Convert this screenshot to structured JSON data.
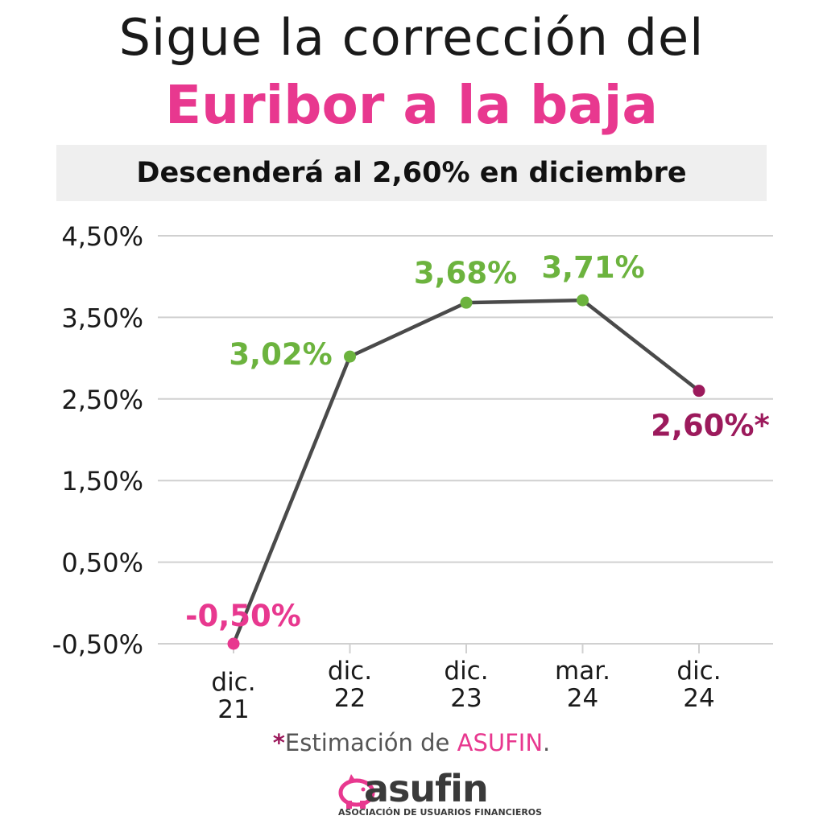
{
  "title_line1": "Sigue la corrección del",
  "title_line2": "Euribor a la baja",
  "subtitle": "Descenderá al 2,60% en diciembre",
  "footnote": {
    "star": "*",
    "text": "Estimación de ",
    "brand": "ASUFIN",
    "end": "."
  },
  "logo": {
    "word": "asufin",
    "tagline": "ASOCIACIÓN DE USUARIOS FINANCIEROS",
    "icon": "piggy-bank-icon"
  },
  "colors": {
    "pink": "#e8388f",
    "green": "#6cb33e",
    "maroon": "#9c1a5c",
    "line": "#4a4a4a",
    "grid": "#d0d0d0"
  },
  "chart_data": {
    "type": "line",
    "categories": [
      [
        "dic.",
        "21"
      ],
      [
        "dic.",
        "22"
      ],
      [
        "dic.",
        "23"
      ],
      [
        "mar.",
        "24"
      ],
      [
        "dic.",
        "24"
      ]
    ],
    "values": [
      -0.5,
      3.02,
      3.68,
      3.71,
      2.6
    ],
    "data_labels": [
      "-0,50%",
      "3,02%",
      "3,68%",
      "3,71%",
      "2,60%*"
    ],
    "point_colors": [
      "#e8388f",
      "#6cb33e",
      "#6cb33e",
      "#6cb33e",
      "#9c1a5c"
    ],
    "label_colors": [
      "#e8388f",
      "#6cb33e",
      "#6cb33e",
      "#6cb33e",
      "#9c1a5c"
    ],
    "yticks": [
      -0.5,
      0.5,
      1.5,
      2.5,
      3.5,
      4.5
    ],
    "ytick_labels": [
      "-0,50%",
      "0,50%",
      "1,50%",
      "2,50%",
      "3,50%",
      "4,50%"
    ],
    "ylim": [
      -0.5,
      4.5
    ],
    "grid": true
  }
}
